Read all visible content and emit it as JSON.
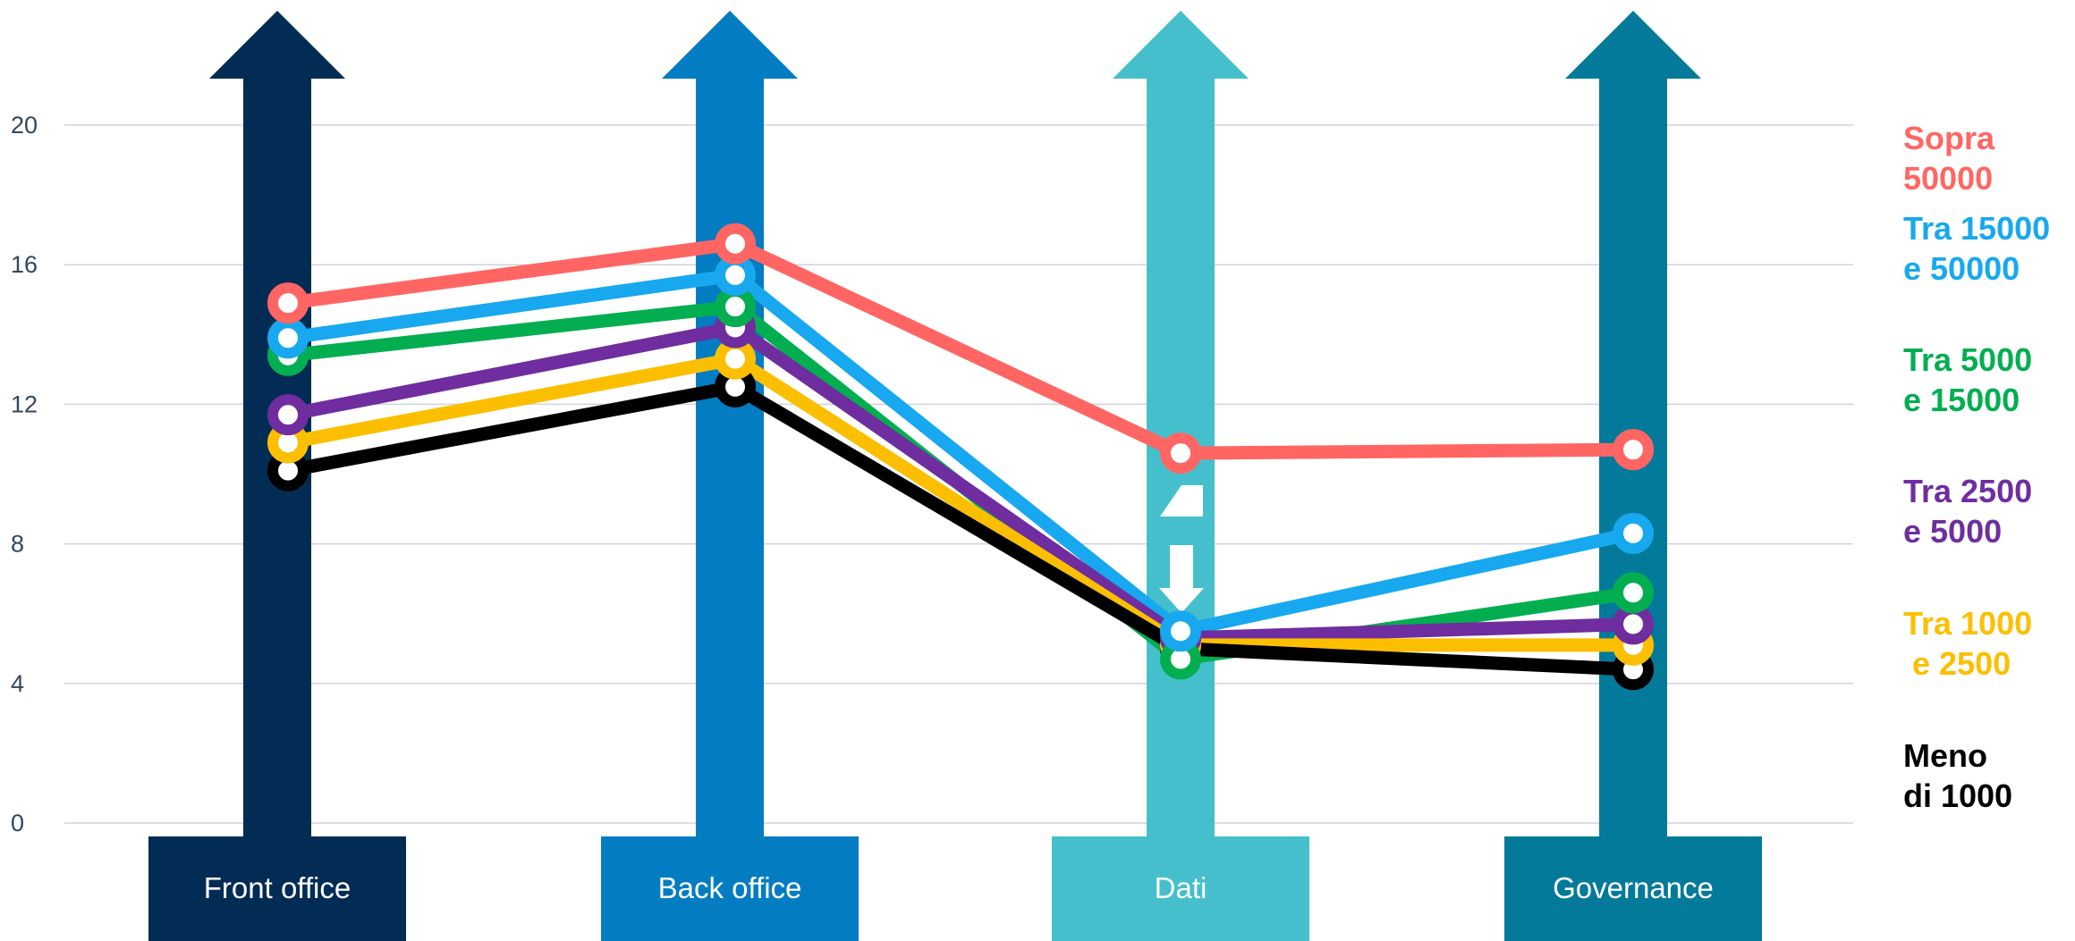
{
  "chart_data": {
    "type": "line",
    "categories": [
      "Front office",
      "Back office",
      "Dati",
      "Governance"
    ],
    "ylim": [
      0,
      20
    ],
    "yticks": [
      0,
      4,
      8,
      12,
      16,
      20
    ],
    "grid": true,
    "legend_position": "right",
    "category_colors": [
      "#022c54",
      "#047cc1",
      "#46bfcc",
      "#037a9a"
    ],
    "series": [
      {
        "name": "Sopra 50000",
        "label_lines": [
          "Sopra",
          "50000"
        ],
        "color": "#ff6663",
        "values": [
          14.9,
          16.6,
          10.6,
          10.7
        ]
      },
      {
        "name": "Tra 15000 e 50000",
        "label_lines": [
          "Tra 15000",
          "e 50000"
        ],
        "color": "#18a8ef",
        "values": [
          13.9,
          15.7,
          5.5,
          8.3
        ]
      },
      {
        "name": "Tra 5000 e 15000",
        "label_lines": [
          "Tra 5000",
          "e 15000"
        ],
        "color": "#03ae51",
        "values": [
          13.4,
          14.8,
          4.7,
          6.6
        ]
      },
      {
        "name": "Tra 2500 e 5000",
        "label_lines": [
          "Tra 2500",
          "e 5000"
        ],
        "color": "#6f2d9f",
        "values": [
          11.7,
          14.2,
          5.3,
          5.7
        ]
      },
      {
        "name": "Tra 1000 e 2500",
        "label_lines": [
          "Tra 1000",
          " e 2500"
        ],
        "color": "#fcbf00",
        "values": [
          10.9,
          13.3,
          5.1,
          5.1
        ]
      },
      {
        "name": "Meno di 1000",
        "label_lines": [
          "Meno",
          "di 1000"
        ],
        "color": "#000000",
        "values": [
          10.1,
          12.5,
          5.0,
          4.4
        ]
      }
    ],
    "annotations": [
      "up-arrow-icon",
      "down-arrow-icon"
    ]
  }
}
